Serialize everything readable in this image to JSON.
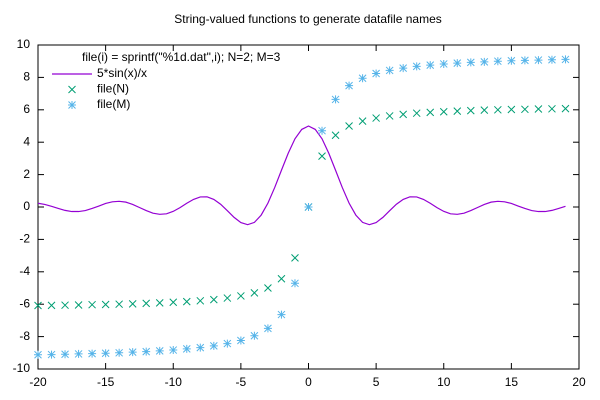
{
  "chart_data": {
    "type": "line",
    "title": "String-valued functions to generate datafile names",
    "legend_title": "file(i) = sprintf(\"%1d.dat\",i); N=2; M=3",
    "xlim": [
      -20,
      20
    ],
    "ylim": [
      -10,
      10
    ],
    "xticks": [
      -20,
      -15,
      -10,
      -5,
      0,
      5,
      10,
      15,
      20
    ],
    "yticks": [
      -10,
      -8,
      -6,
      -4,
      -2,
      0,
      2,
      4,
      6,
      8,
      10
    ],
    "grid": false,
    "legend": "top-left",
    "series": [
      {
        "name": "5*sin(x)/x",
        "color": "#9400d3",
        "marker": "line",
        "x": [
          -20,
          -19.5,
          -19,
          -18.5,
          -18,
          -17.5,
          -17,
          -16.5,
          -16,
          -15.5,
          -15,
          -14.5,
          -14,
          -13.5,
          -13,
          -12.5,
          -12,
          -11.5,
          -11,
          -10.5,
          -10,
          -9.5,
          -9,
          -8.5,
          -8,
          -7.5,
          -7,
          -6.5,
          -6,
          -5.5,
          -5,
          -4.5,
          -4,
          -3.5,
          -3,
          -2.5,
          -2,
          -1.5,
          -1,
          -0.5,
          0,
          0.5,
          1,
          1.5,
          2,
          2.5,
          3,
          3.5,
          4,
          4.5,
          5,
          5.5,
          6,
          6.5,
          7,
          7.5,
          8,
          8.5,
          9,
          9.5,
          10,
          10.5,
          11,
          11.5,
          12,
          12.5,
          13,
          13.5,
          14,
          14.5,
          15,
          15.5,
          16,
          16.5,
          17,
          17.5,
          18,
          18.5,
          19
        ],
        "values": [
          0.23,
          0.16,
          0.04,
          -0.09,
          -0.21,
          -0.28,
          -0.28,
          -0.22,
          -0.09,
          0.06,
          0.22,
          0.32,
          0.35,
          0.3,
          0.16,
          -0.03,
          -0.22,
          -0.38,
          -0.45,
          -0.42,
          -0.27,
          -0.04,
          0.23,
          0.47,
          0.62,
          0.63,
          0.47,
          0.17,
          -0.23,
          -0.64,
          -0.96,
          -1.09,
          -0.95,
          -0.5,
          0.24,
          1.2,
          2.27,
          3.32,
          4.21,
          4.79,
          5,
          4.79,
          4.21,
          3.32,
          2.27,
          1.2,
          0.24,
          -0.5,
          -0.95,
          -1.09,
          -0.96,
          -0.64,
          -0.23,
          0.17,
          0.47,
          0.63,
          0.62,
          0.47,
          0.23,
          -0.04,
          -0.27,
          -0.42,
          -0.45,
          -0.38,
          -0.22,
          -0.03,
          0.16,
          0.3,
          0.35,
          0.32,
          0.22,
          0.06,
          -0.09,
          -0.22,
          -0.28,
          -0.28,
          -0.21,
          -0.09,
          0.04
        ]
      },
      {
        "name": "file(N)",
        "color": "#009e73",
        "marker": "x",
        "x": [
          -20,
          -19,
          -18,
          -17,
          -16,
          -15,
          -14,
          -13,
          -12,
          -11,
          -10,
          -9,
          -8,
          -7,
          -6,
          -5,
          -4,
          -3,
          -2,
          -1,
          0,
          1,
          2,
          3,
          4,
          5,
          6,
          7,
          8,
          9,
          10,
          11,
          12,
          13,
          14,
          15,
          16,
          17,
          18,
          19
        ],
        "values": [
          -6.08,
          -6.07,
          -6.06,
          -6.05,
          -6.03,
          -6.02,
          -6,
          -5.98,
          -5.95,
          -5.92,
          -5.88,
          -5.84,
          -5.79,
          -5.72,
          -5.62,
          -5.49,
          -5.3,
          -5,
          -4.43,
          -3.14,
          0,
          3.14,
          4.43,
          5,
          5.3,
          5.49,
          5.62,
          5.72,
          5.79,
          5.84,
          5.88,
          5.92,
          5.95,
          5.98,
          6,
          6.02,
          6.03,
          6.05,
          6.06,
          6.07
        ]
      },
      {
        "name": "file(M)",
        "color": "#56b4e9",
        "marker": "asterisk",
        "x": [
          -20,
          -19,
          -18,
          -17,
          -16,
          -15,
          -14,
          -13,
          -12,
          -11,
          -10,
          -9,
          -8,
          -7,
          -6,
          -5,
          -4,
          -3,
          -2,
          -1,
          0,
          1,
          2,
          3,
          4,
          5,
          6,
          7,
          8,
          9,
          10,
          11,
          12,
          13,
          14,
          15,
          16,
          17,
          18,
          19
        ],
        "values": [
          -9.12,
          -9.11,
          -9.09,
          -9.07,
          -9.05,
          -9.03,
          -9,
          -8.96,
          -8.93,
          -8.88,
          -8.83,
          -8.76,
          -8.68,
          -8.57,
          -8.43,
          -8.24,
          -7.95,
          -7.49,
          -6.64,
          -4.71,
          0,
          4.71,
          6.64,
          7.49,
          7.95,
          8.24,
          8.43,
          8.57,
          8.68,
          8.76,
          8.83,
          8.88,
          8.93,
          8.96,
          9,
          9.03,
          9.05,
          9.07,
          9.09,
          9.11
        ]
      }
    ]
  }
}
